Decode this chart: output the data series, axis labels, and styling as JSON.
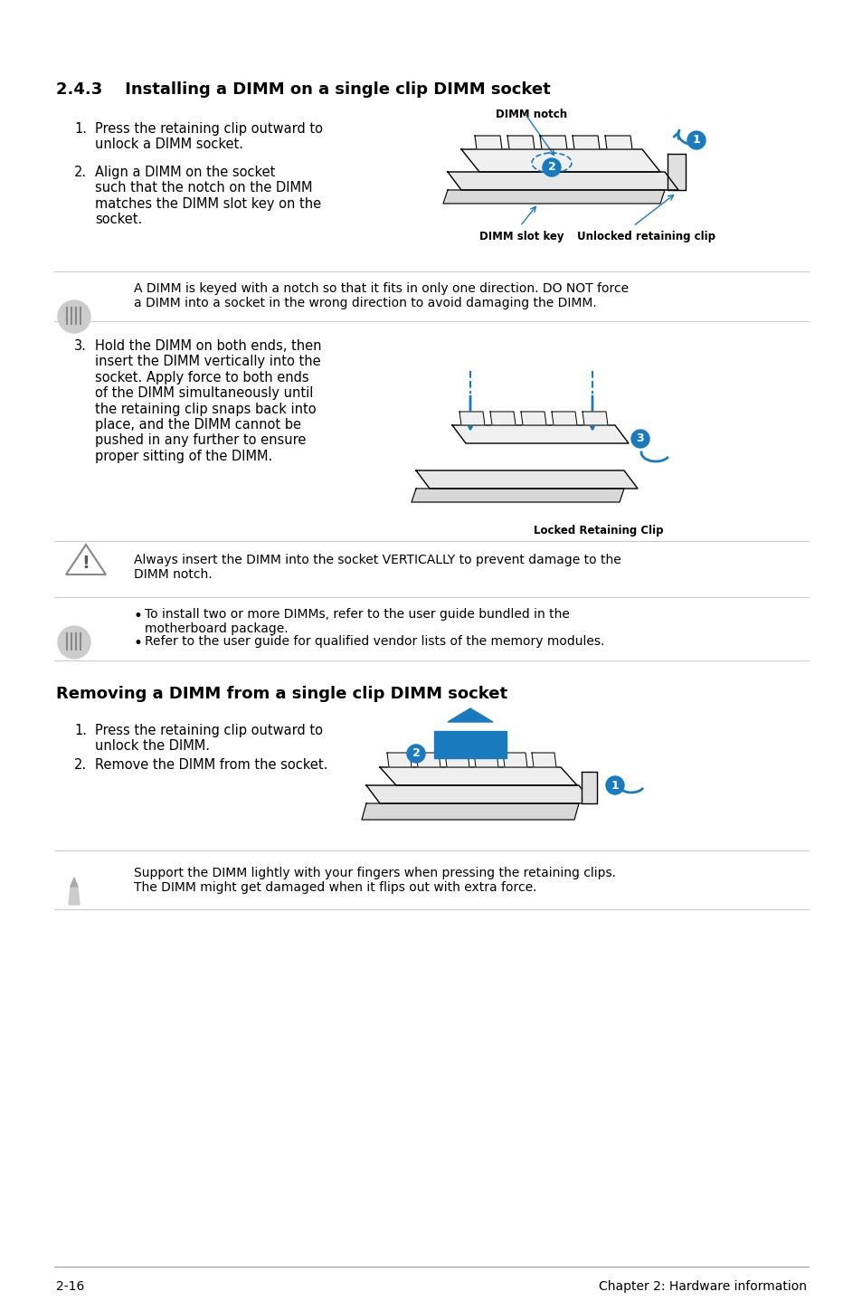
{
  "title_section": "2.4.3    Installing a DIMM on a single clip DIMM socket",
  "section2_title": "Removing a DIMM from a single clip DIMM socket",
  "bg_color": "#ffffff",
  "text_color": "#000000",
  "accent_color": "#1a7abf",
  "page_number": "2-16",
  "chapter_text": "Chapter 2: Hardware information",
  "install_steps": [
    "Press the retaining clip outward to\nunlock a DIMM socket.",
    "Align a DIMM on the socket\nsuch that the notch on the DIMM\nmatches the DIMM slot key on the\nsocket."
  ],
  "install_step3": "Hold the DIMM on both ends, then\ninsert the DIMM vertically into the\nsocket. Apply force to both ends\nof the DIMM simultaneously until\nthe retaining clip snaps back into\nplace, and the DIMM cannot be\npushed in any further to ensure\nproper sitting of the DIMM.",
  "note1": "A DIMM is keyed with a notch so that it fits in only one direction. DO NOT force\na DIMM into a socket in the wrong direction to avoid damaging the DIMM.",
  "warning1": "Always insert the DIMM into the socket VERTICALLY to prevent damage to the\nDIMM notch.",
  "note2_bullets": [
    "To install two or more DIMMs, refer to the user guide bundled in the\nmotherboard package.",
    "Refer to the user guide for qualified vendor lists of the memory modules."
  ],
  "remove_steps": [
    "Press the retaining clip outward to\nunlock the DIMM.",
    "Remove the DIMM from the socket."
  ],
  "note3": "Support the DIMM lightly with your fingers when pressing the retaining clips.\nThe DIMM might get damaged when it flips out with extra force.",
  "dimm_notch_label": "DIMM notch",
  "dimm_slot_key_label": "DIMM slot key",
  "unlocked_clip_label": "Unlocked retaining clip",
  "locked_clip_label": "Locked Retaining Clip"
}
